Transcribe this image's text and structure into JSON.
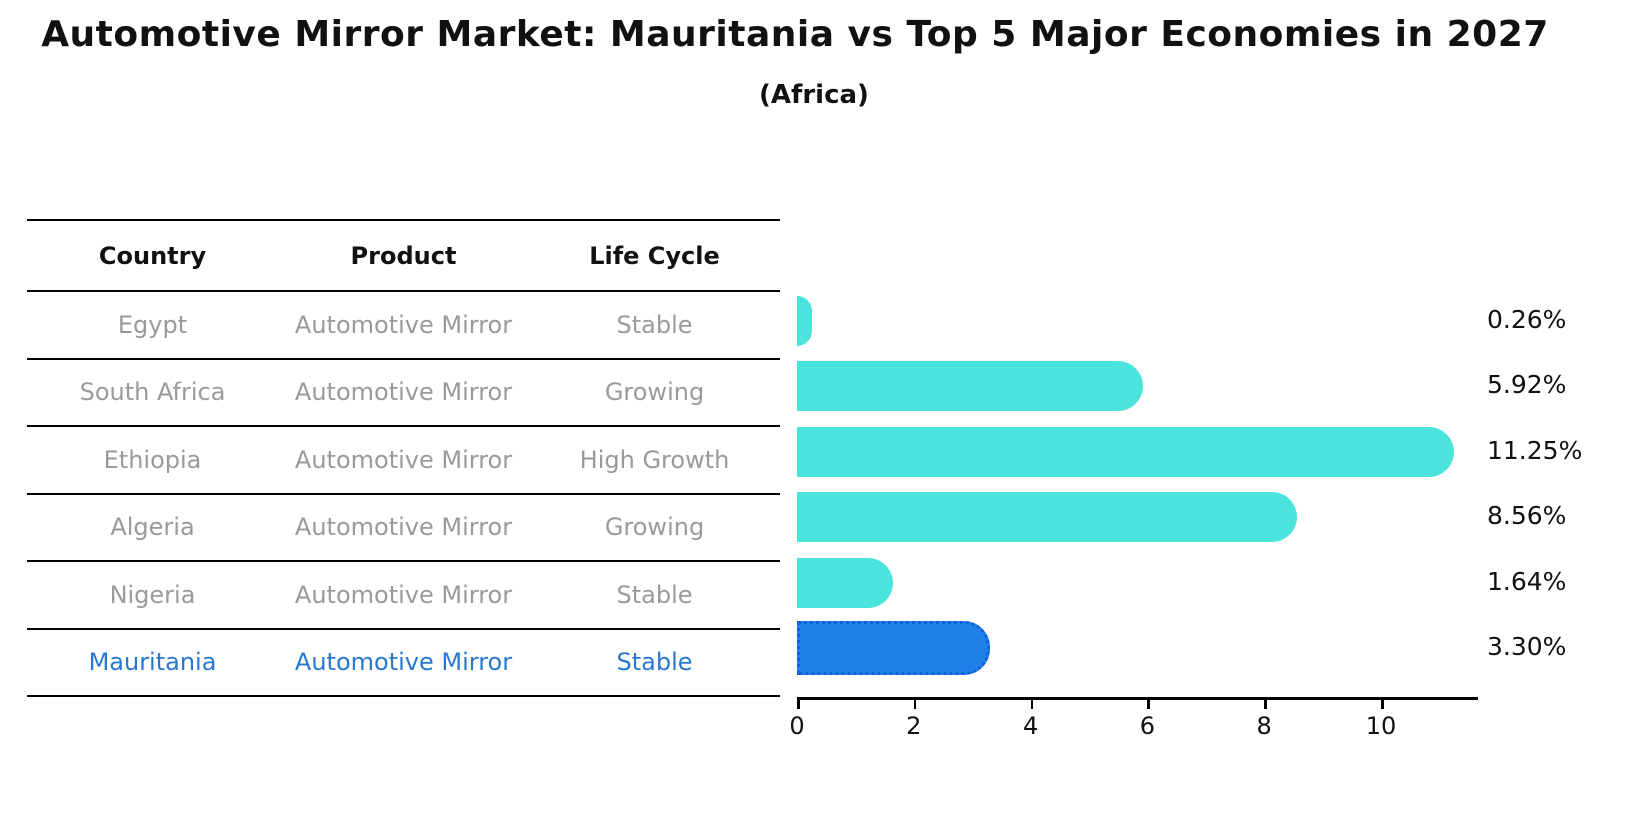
{
  "title": "Automotive Mirror Market: Mauritania vs Top 5 Major Economies in 2027",
  "subtitle": "(Africa)",
  "table": {
    "headers": [
      "Country",
      "Product",
      "Life Cycle"
    ],
    "rows": [
      {
        "country": "Egypt",
        "product": "Automotive Mirror",
        "life_cycle": "Stable",
        "highlight": false
      },
      {
        "country": "South Africa",
        "product": "Automotive Mirror",
        "life_cycle": "Growing",
        "highlight": false
      },
      {
        "country": "Ethiopia",
        "product": "Automotive Mirror",
        "life_cycle": "High Growth",
        "highlight": false
      },
      {
        "country": "Algeria",
        "product": "Automotive Mirror",
        "life_cycle": "Growing",
        "highlight": false
      },
      {
        "country": "Nigeria",
        "product": "Automotive Mirror",
        "life_cycle": "Stable",
        "highlight": true
      }
    ],
    "highlight_row": {
      "country": "Mauritania",
      "product": "Automotive Mirror",
      "life_cycle": "Stable"
    }
  },
  "chart_data": {
    "type": "bar",
    "orientation": "horizontal",
    "title": "Automotive Mirror Market: Mauritania vs Top 5 Major Economies in 2027",
    "subtitle": "(Africa)",
    "categories": [
      "Egypt",
      "South Africa",
      "Ethiopia",
      "Algeria",
      "Nigeria",
      "Mauritania"
    ],
    "values": [
      0.26,
      5.92,
      11.25,
      8.56,
      1.64,
      3.3
    ],
    "value_labels": [
      "0.26%",
      "5.92%",
      "11.25%",
      "8.56%",
      "1.64%",
      "3.30%"
    ],
    "highlighted_category": "Mauritania",
    "x_ticks": [
      0,
      2,
      4,
      6,
      8,
      10
    ],
    "xlim": [
      0,
      11.8
    ],
    "grid": false,
    "legend": "none",
    "bar_color": "#4be4dd",
    "highlight_bar_color": "#1f80e8",
    "highlight_border_color": "#0e5fd8"
  },
  "colors": {
    "background": "#ffffff",
    "muted_text": "#9a9a9a",
    "highlight_text": "#2878d0",
    "axis": "#000000"
  }
}
